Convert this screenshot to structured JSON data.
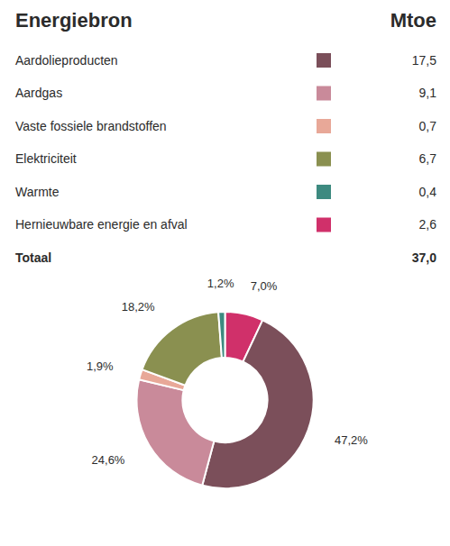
{
  "chart_data": [
    {
      "type": "table",
      "columns": [
        "Energiebron",
        "Mtoe"
      ],
      "categories": [
        "Aardolieproducten",
        "Aardgas",
        "Vaste fossiele brandstoffen",
        "Elektriciteit",
        "Warmte",
        "Hernieuwbare energie en afval"
      ],
      "values": [
        17.5,
        9.1,
        0.7,
        6.7,
        0.4,
        2.6
      ],
      "value_labels": [
        "17,5",
        "9,1",
        "0,7",
        "6,7",
        "0,4",
        "2,6"
      ],
      "colors": [
        "#7b4f5a",
        "#c98a9a",
        "#e8a898",
        "#8a9050",
        "#3d8a80",
        "#d0306a"
      ],
      "total_label": "Totaal",
      "total": 37.0,
      "total_value_label": "37,0"
    },
    {
      "type": "donut",
      "values": [
        7.0,
        47.2,
        24.6,
        1.9,
        18.2,
        1.2
      ],
      "value_labels": [
        "7,0%",
        "47,2%",
        "24,6%",
        "1,9%",
        "18,2%",
        "1,2%"
      ],
      "colors": [
        "#d0306a",
        "#7b4f5a",
        "#c98a9a",
        "#e8a898",
        "#8a9050",
        "#3d8a80"
      ],
      "data_labels": true
    }
  ]
}
